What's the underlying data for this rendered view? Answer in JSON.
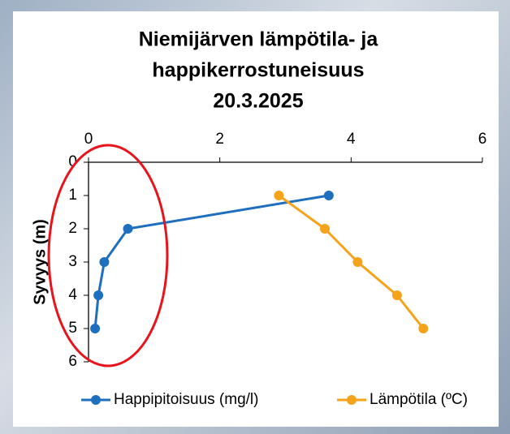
{
  "chart_data": {
    "type": "scatter",
    "title": [
      "Niemijärven lämpötila- ja",
      "happikerrostuneisuus",
      "20.3.2025"
    ],
    "y_label": "Syvyys (m)",
    "xlim": [
      0,
      6
    ],
    "xticks": [
      0,
      2,
      4,
      6
    ],
    "ylim": [
      0,
      6
    ],
    "yticks": [
      0,
      1,
      2,
      3,
      4,
      5,
      6
    ],
    "y_inverted": true,
    "legend": "bottom",
    "series": [
      {
        "name": "Happipitoisuus (mg/l)",
        "color": "#1f6fbf",
        "x": [
          3.66,
          0.6,
          0.24,
          0.15,
          0.1
        ],
        "y": [
          1,
          2,
          3,
          4,
          5
        ]
      },
      {
        "name": "Lämpötila (ºC)",
        "color": "#f5a31a",
        "x": [
          2.9,
          3.6,
          4.1,
          4.7,
          5.1
        ],
        "y": [
          1,
          2,
          3,
          4,
          5
        ]
      }
    ]
  }
}
